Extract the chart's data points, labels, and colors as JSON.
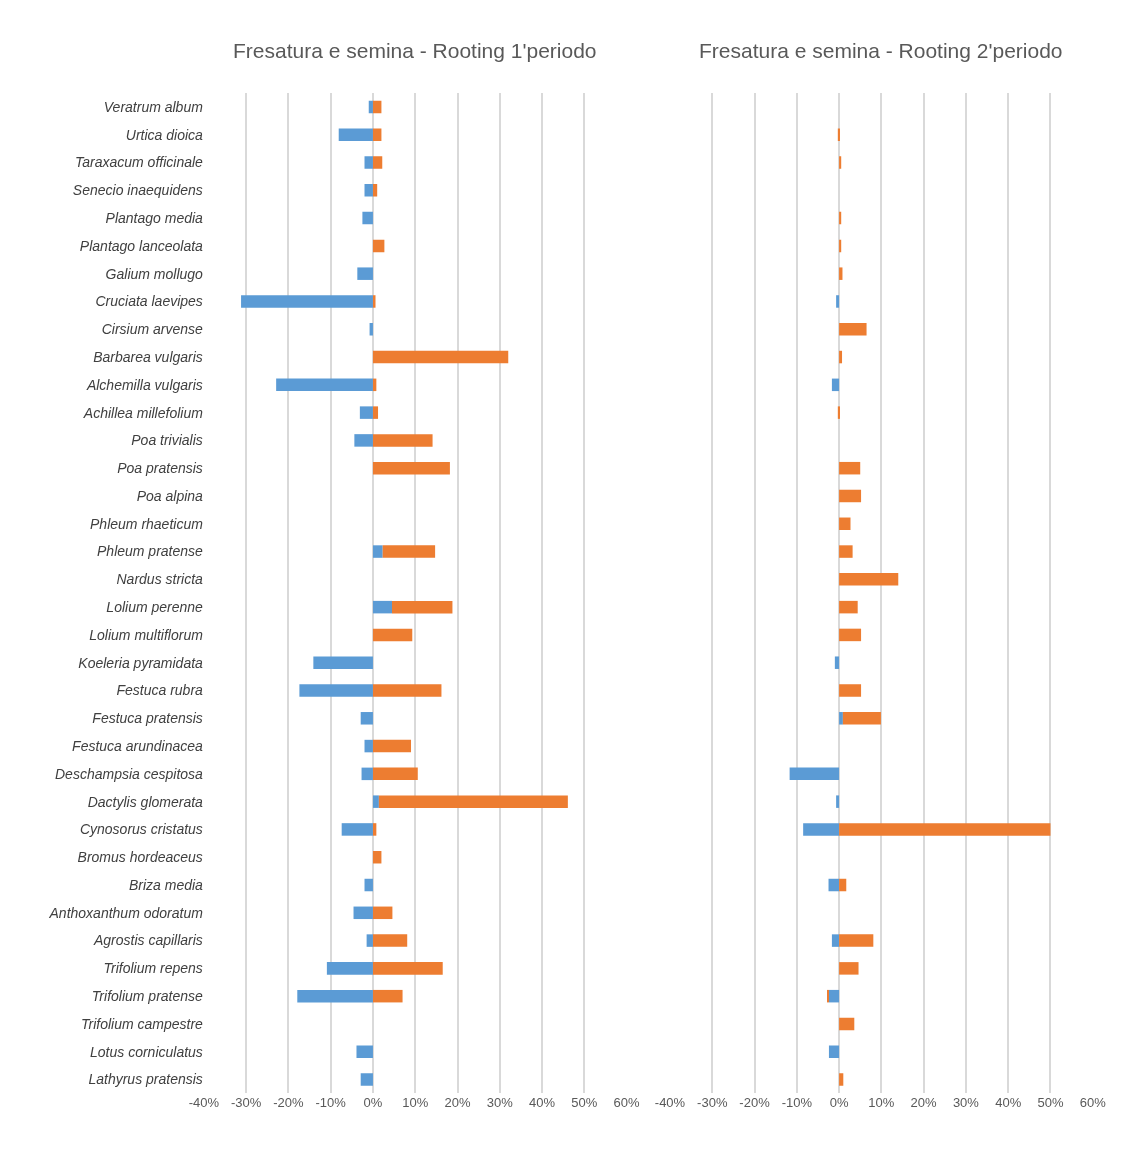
{
  "chart_data": [
    {
      "type": "bar",
      "title": "Fresatura e semina - Rooting 1'periodo",
      "orientation": "horizontal",
      "stacked": true,
      "grid": "x",
      "categories": [
        "Veratrum album",
        "Urtica dioica",
        "Taraxacum officinale",
        "Senecio inaequidens",
        "Plantago media",
        "Plantago lanceolata",
        "Galium mollugo",
        "Cruciata laevipes",
        "Cirsium arvense",
        "Barbarea vulgaris",
        "Alchemilla vulgaris",
        "Achillea millefolium",
        "Poa trivialis",
        "Poa pratensis",
        "Poa alpina",
        "Phleum rhaeticum",
        "Phleum pratense",
        "Nardus stricta",
        "Lolium perenne",
        "Lolium multiflorum",
        "Koeleria pyramidata",
        "Festuca rubra",
        "Festuca pratensis",
        "Festuca arundinacea",
        "Deschampsia cespitosa",
        "Dactylis glomerata",
        "Cynosorus cristatus",
        "Bromus hordeaceus",
        "Briza media",
        "Anthoxanthum odoratum",
        "Agrostis capillaris",
        "Trifolium repens",
        "Trifolium pratense",
        "Trifolium campestre",
        "Lotus corniculatus",
        "Lathyrus pratensis"
      ],
      "series": [
        {
          "color": "#5b9bd5",
          "values": [
            -1.0,
            -8.1,
            -2.0,
            -2.0,
            -2.5,
            null,
            -3.7,
            -31.2,
            -0.8,
            null,
            -22.9,
            -3.1,
            -4.4,
            null,
            null,
            null,
            2.3,
            null,
            4.5,
            null,
            -14.1,
            -17.4,
            -2.9,
            -2.0,
            -2.7,
            1.4,
            -7.4,
            null,
            -2.0,
            -4.6,
            -1.5,
            -10.9,
            -17.9,
            null,
            -3.9,
            -2.9
          ]
        },
        {
          "color": "#ed7d31",
          "values": [
            2.0,
            2.0,
            2.2,
            1.0,
            null,
            2.7,
            null,
            0.6,
            null,
            32.0,
            0.8,
            1.2,
            14.1,
            18.2,
            null,
            null,
            12.4,
            null,
            14.3,
            9.3,
            null,
            16.2,
            null,
            9.0,
            10.6,
            44.7,
            0.8,
            2.0,
            null,
            4.6,
            8.1,
            16.5,
            7.0,
            null,
            null,
            null
          ]
        }
      ],
      "xlim": [
        -40,
        60
      ],
      "xticks": [
        {
          "value": -40,
          "label": "-40%"
        },
        {
          "value": -30,
          "label": "-30%"
        },
        {
          "value": -20,
          "label": "-20%"
        },
        {
          "value": -10,
          "label": "-10%"
        },
        {
          "value": 0,
          "label": "0%"
        },
        {
          "value": 10,
          "label": "10%"
        },
        {
          "value": 20,
          "label": "20%"
        },
        {
          "value": 30,
          "label": "30%"
        },
        {
          "value": 40,
          "label": "40%"
        },
        {
          "value": 50,
          "label": "50%"
        },
        {
          "value": 60,
          "label": "60%"
        }
      ]
    },
    {
      "type": "bar",
      "title": "Fresatura e semina - Rooting 2'periodo",
      "orientation": "horizontal",
      "stacked": true,
      "grid": "x",
      "tick_labels": "x",
      "categories": [
        null,
        null,
        null,
        null,
        null,
        null,
        null,
        null,
        null,
        null,
        null,
        null,
        null,
        null,
        null,
        null,
        null,
        null,
        null,
        null,
        null,
        null,
        null,
        null,
        null,
        null,
        null,
        null,
        null,
        null,
        null,
        null,
        null,
        null,
        null,
        null
      ],
      "series": [
        {
          "color": "#5b9bd5",
          "values": [
            null,
            null,
            null,
            null,
            null,
            null,
            null,
            -0.7,
            null,
            null,
            -1.7,
            null,
            null,
            null,
            null,
            null,
            null,
            null,
            null,
            null,
            -1.0,
            null,
            0.9,
            null,
            -11.7,
            -0.7,
            -8.5,
            null,
            -2.5,
            null,
            -1.7,
            null,
            -2.4,
            null,
            -2.4,
            null
          ]
        },
        {
          "color": "#ed7d31",
          "values": [
            null,
            -0.3,
            0.5,
            null,
            0.5,
            0.5,
            0.8,
            null,
            6.5,
            0.7,
            null,
            -0.3,
            null,
            5.0,
            5.2,
            2.7,
            3.2,
            14.0,
            4.4,
            5.2,
            null,
            5.2,
            9.0,
            null,
            null,
            null,
            50.0,
            null,
            1.7,
            null,
            8.1,
            4.6,
            -0.4,
            3.6,
            null,
            1.0
          ]
        }
      ],
      "xlim": [
        -40,
        60
      ],
      "xticks": [
        {
          "value": -40,
          "label": "-40%"
        },
        {
          "value": -30,
          "label": "-30%"
        },
        {
          "value": -20,
          "label": "-20%"
        },
        {
          "value": -10,
          "label": "-10%"
        },
        {
          "value": 0,
          "label": "0%"
        },
        {
          "value": 10,
          "label": "10%"
        },
        {
          "value": 20,
          "label": "20%"
        },
        {
          "value": 30,
          "label": "30%"
        },
        {
          "value": 40,
          "label": "40%"
        },
        {
          "value": 50,
          "label": "50%"
        },
        {
          "value": 60,
          "label": "60%"
        }
      ]
    }
  ]
}
